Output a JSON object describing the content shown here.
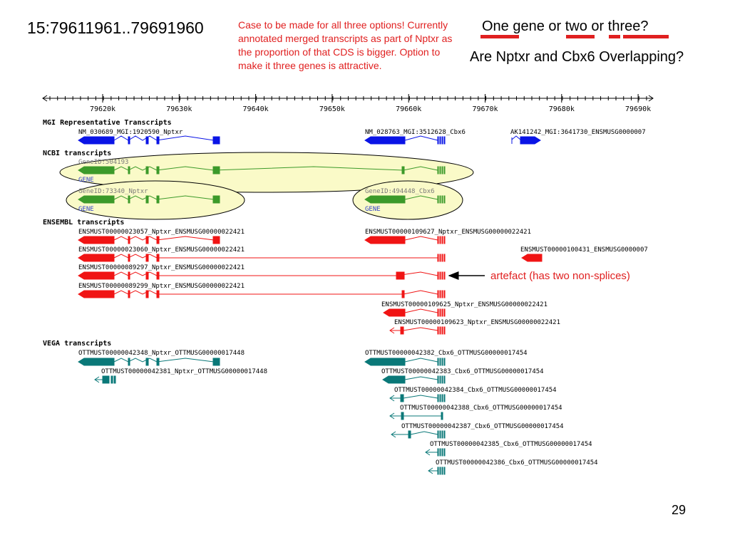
{
  "slide": {
    "coordinates": "15:79611961..79691960",
    "note": "Case to be made for all three options! Currently annotated merged transcripts as part of Nptxr as the proportion of that CDS is bigger. Option to make it three genes is attractive.",
    "question_gene_count": "One gene or two or three?",
    "question_overlap": "Are Nptxr and Cbx6 Overlapping?",
    "artefact_note": "artefact (has two non-splices)",
    "slide_number": "29"
  },
  "colors": {
    "mgi": "#0a14e6",
    "ncbi": "#3c9a2a",
    "ensembl": "#f01414",
    "vega": "#0a7878",
    "annotation": "#e02020",
    "highlight_fill": "#fafac8"
  },
  "ruler": {
    "ticks": [
      "79620k",
      "79630k",
      "79640k",
      "79650k",
      "79660k",
      "79670k",
      "79680k",
      "79690k"
    ]
  },
  "tracks": {
    "mgi": {
      "title": "MGI Representative Transcripts",
      "labels": [
        "NM_030689_MGI:1920590_Nptxr",
        "NM_028763_MGI:3512628_Cbx6",
        "AK141242_MGI:3641730_ENSMUSG0000007"
      ]
    },
    "ncbi": {
      "title": "NCBI transcripts",
      "labels": [
        "GeneID:504193",
        "GENE",
        "GeneID:73340_Nptxr",
        "GENE",
        "GeneID:494448_Cbx6",
        "GENE"
      ]
    },
    "ensembl": {
      "title": "ENSEMBL transcripts",
      "labels": [
        "ENSMUST00000023057_Nptxr_ENSMUSG00000022421",
        "ENSMUST00000109627_Nptxr_ENSMUSG00000022421",
        "ENSMUST00000023060_Nptxr_ENSMUSG00000022421",
        "ENSMUST00000100431_ENSMUSG0000007",
        "ENSMUST00000089297_Nptxr_ENSMUSG00000022421",
        "ENSMUST00000089299_Nptxr_ENSMUSG00000022421",
        "ENSMUST00000109625_Nptxr_ENSMUSG00000022421",
        "ENSMUST00000109623_Nptxr_ENSMUSG00000022421"
      ]
    },
    "vega": {
      "title": "VEGA transcripts",
      "labels": [
        "OTTMUST00000042348_Nptxr_OTTMUSG00000017448",
        "OTTMUST00000042382_Cbx6_OTTMUSG00000017454",
        "OTTMUST00000042381_Nptxr_OTTMUSG00000017448",
        "OTTMUST00000042383_Cbx6_OTTMUSG00000017454",
        "OTTMUST00000042384_Cbx6_OTTMUSG00000017454",
        "OTTMUST00000042388_Cbx6_OTTMUSG00000017454",
        "OTTMUST00000042387_Cbx6_OTTMUSG00000017454",
        "OTTMUST00000042385_Cbx6_OTTMUSG00000017454",
        "OTTMUST00000042386_Cbx6_OTTMUSG00000017454"
      ]
    }
  }
}
